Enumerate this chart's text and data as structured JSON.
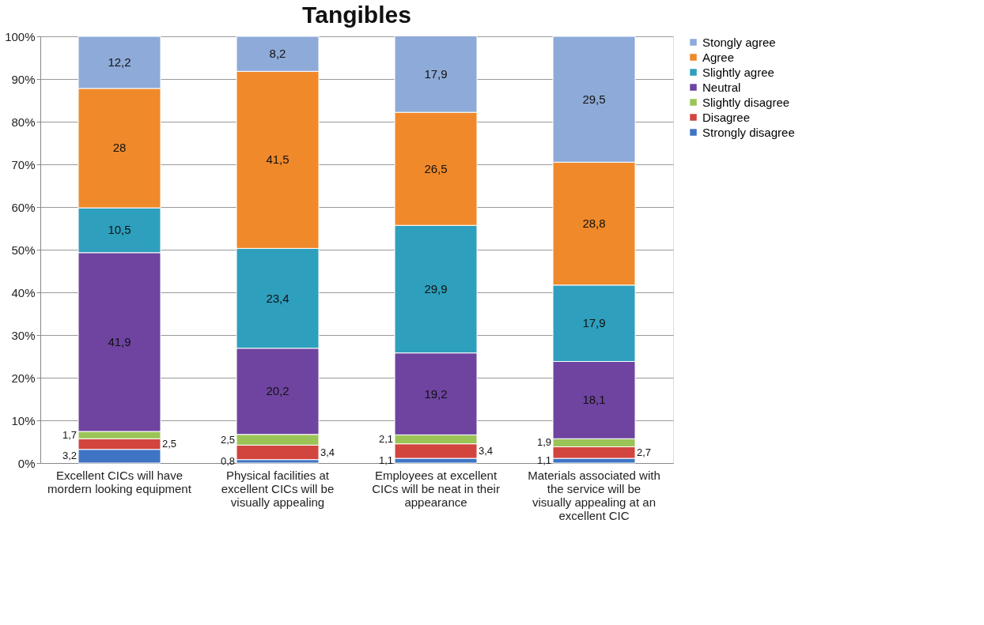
{
  "chart_data": {
    "type": "bar",
    "title": "Tangibles",
    "stacked": true,
    "grid": "y",
    "legend": "right",
    "categories": [
      "Excellent CICs will have mordern looking equipment",
      "Physical facilities at excellent CICs will be visually appealing",
      "Employees at excellent CICs will be neat in their appearance",
      "Materials associated with the service will be visually appealing at an excellent CIC"
    ],
    "ylim": [
      0,
      100
    ],
    "yticks": [
      {
        "value": 0,
        "label": "0%"
      },
      {
        "value": 10,
        "label": "10%"
      },
      {
        "value": 20,
        "label": "20%"
      },
      {
        "value": 30,
        "label": "30%"
      },
      {
        "value": 40,
        "label": "40%"
      },
      {
        "value": 50,
        "label": "50%"
      },
      {
        "value": 60,
        "label": "60%"
      },
      {
        "value": 70,
        "label": "70%"
      },
      {
        "value": 80,
        "label": "80%"
      },
      {
        "value": 90,
        "label": "90%"
      },
      {
        "value": 100,
        "label": "100%"
      }
    ],
    "series": [
      {
        "name": "Strongly disagree",
        "color": "#3f74c4",
        "values": [
          3.2,
          0.8,
          1.1,
          1.1
        ],
        "value_labels": [
          "3,2",
          "0,8",
          "1,1",
          "1,1"
        ]
      },
      {
        "name": "Disagree",
        "color": "#d2453f",
        "values": [
          2.5,
          3.4,
          3.4,
          2.7
        ],
        "value_labels": [
          "2,5",
          "3,4",
          "3,4",
          "2,7"
        ]
      },
      {
        "name": "Slightly disagree",
        "color": "#9bc456",
        "values": [
          1.7,
          2.5,
          2.1,
          1.9
        ],
        "value_labels": [
          "1,7",
          "2,5",
          "2,1",
          "1,9"
        ]
      },
      {
        "name": "Neutral",
        "color": "#6e44a0",
        "values": [
          41.9,
          20.2,
          19.2,
          18.1
        ],
        "value_labels": [
          "41,9",
          "20,2",
          "19,2",
          "18,1"
        ]
      },
      {
        "name": "Slightly agree",
        "color": "#2e9fbd",
        "values": [
          10.5,
          23.4,
          29.9,
          17.9
        ],
        "value_labels": [
          "10,5",
          "23,4",
          "29,9",
          "17,9"
        ]
      },
      {
        "name": "Agree",
        "color": "#f0892a",
        "values": [
          28,
          41.5,
          26.5,
          28.8
        ],
        "value_labels": [
          "28",
          "41,5",
          "26,5",
          "28,8"
        ]
      },
      {
        "name": "Stongly agree",
        "color": "#8eaad8",
        "values": [
          12.2,
          8.2,
          17.9,
          29.5
        ],
        "value_labels": [
          "12,2",
          "8,2",
          "17,9",
          "29,5"
        ]
      }
    ]
  }
}
